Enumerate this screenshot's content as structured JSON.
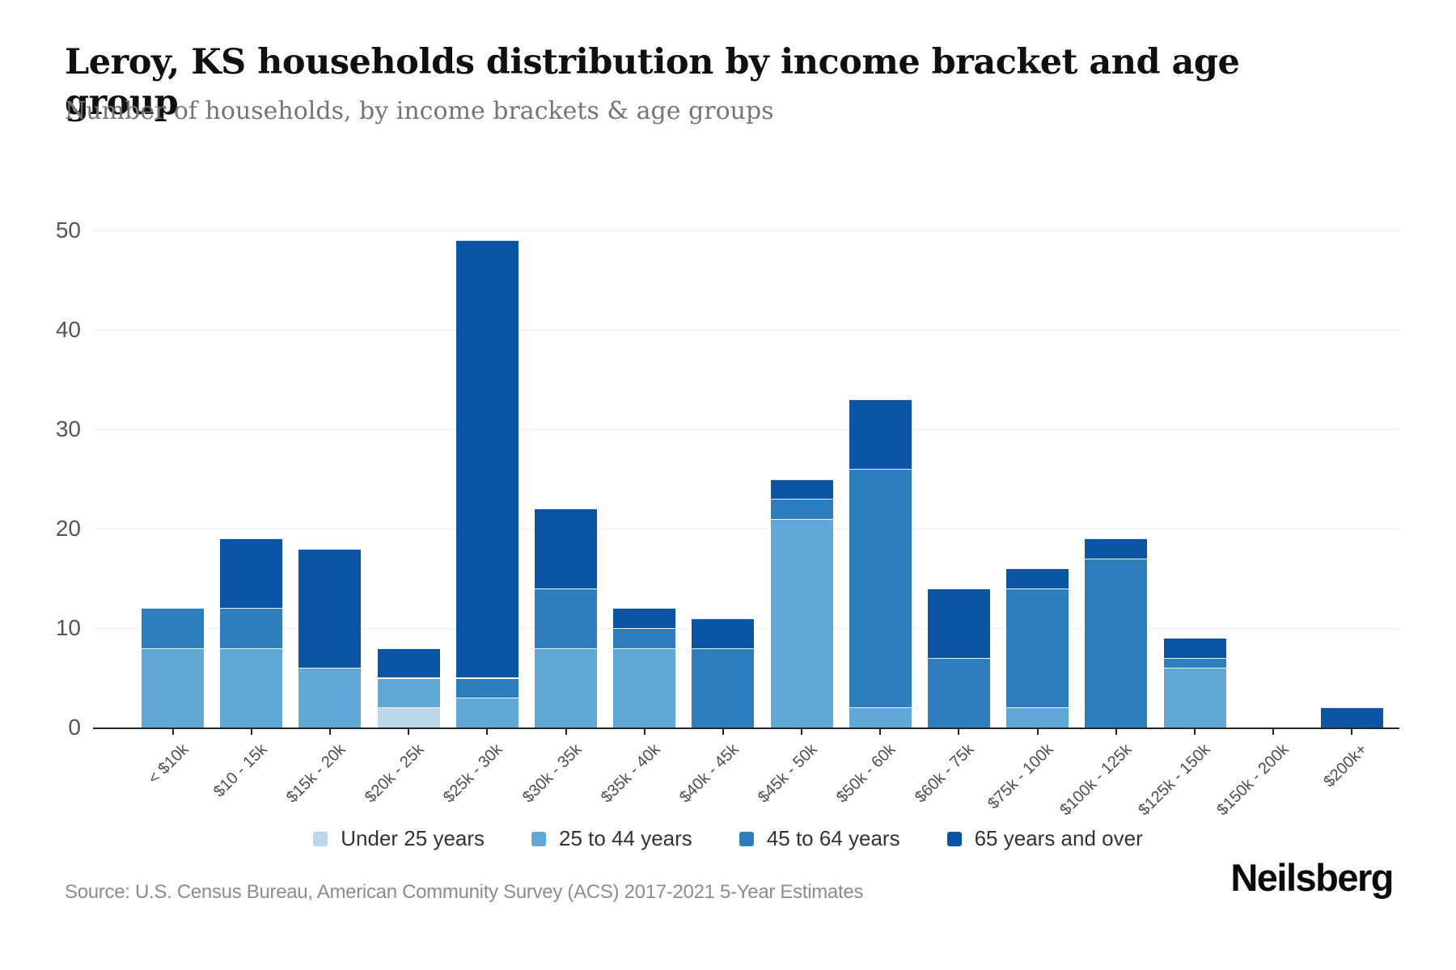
{
  "page": {
    "title": "Leroy, KS households distribution by income bracket and age group",
    "subtitle": "Number of households, by income brackets & age groups",
    "source": "Source: U.S. Census Bureau, American Community Survey (ACS) 2017-2021 5-Year Estimates",
    "brand": "Neilsberg"
  },
  "chart_data": {
    "type": "bar",
    "stacked": true,
    "title": "Leroy, KS households distribution by income bracket and age group",
    "subtitle": "Number of households, by income brackets & age groups",
    "categories": [
      "< $10k",
      "$10 - 15k",
      "$15k - 20k",
      "$20k - 25k",
      "$25k - 30k",
      "$30k - 35k",
      "$35k - 40k",
      "$40k - 45k",
      "$45k - 50k",
      "$50k - 60k",
      "$60k - 75k",
      "$75k - 100k",
      "$100k - 125k",
      "$125k - 150k",
      "$150k - 200k",
      "$200k+"
    ],
    "series": [
      {
        "name": "Under 25 years",
        "color": "#bdd7ea",
        "values": [
          0,
          0,
          0,
          2,
          0,
          0,
          0,
          0,
          0,
          0,
          0,
          0,
          0,
          0,
          0,
          0
        ]
      },
      {
        "name": "25 to 44 years",
        "color": "#62a8d6",
        "values": [
          8,
          8,
          6,
          3,
          3,
          8,
          8,
          0,
          21,
          2,
          0,
          2,
          0,
          6,
          0,
          0
        ]
      },
      {
        "name": "45 to 64 years",
        "color": "#2e7ebd",
        "values": [
          4,
          4,
          0,
          0,
          2,
          6,
          2,
          8,
          2,
          24,
          7,
          12,
          17,
          1,
          0,
          0
        ]
      },
      {
        "name": "65 years and over",
        "color": "#0b55a4",
        "values": [
          0,
          7,
          12,
          3,
          44,
          8,
          2,
          3,
          2,
          7,
          7,
          2,
          2,
          2,
          0,
          2
        ]
      }
    ],
    "totals": [
      12,
      19,
      18,
      8,
      49,
      22,
      12,
      11,
      25,
      33,
      14,
      16,
      19,
      9,
      0,
      2
    ],
    "ylim": [
      0,
      50
    ],
    "yticks": [
      0,
      10,
      20,
      30,
      40,
      50
    ],
    "grid": true,
    "legend_position": "bottom",
    "xlabel": "",
    "ylabel": ""
  }
}
